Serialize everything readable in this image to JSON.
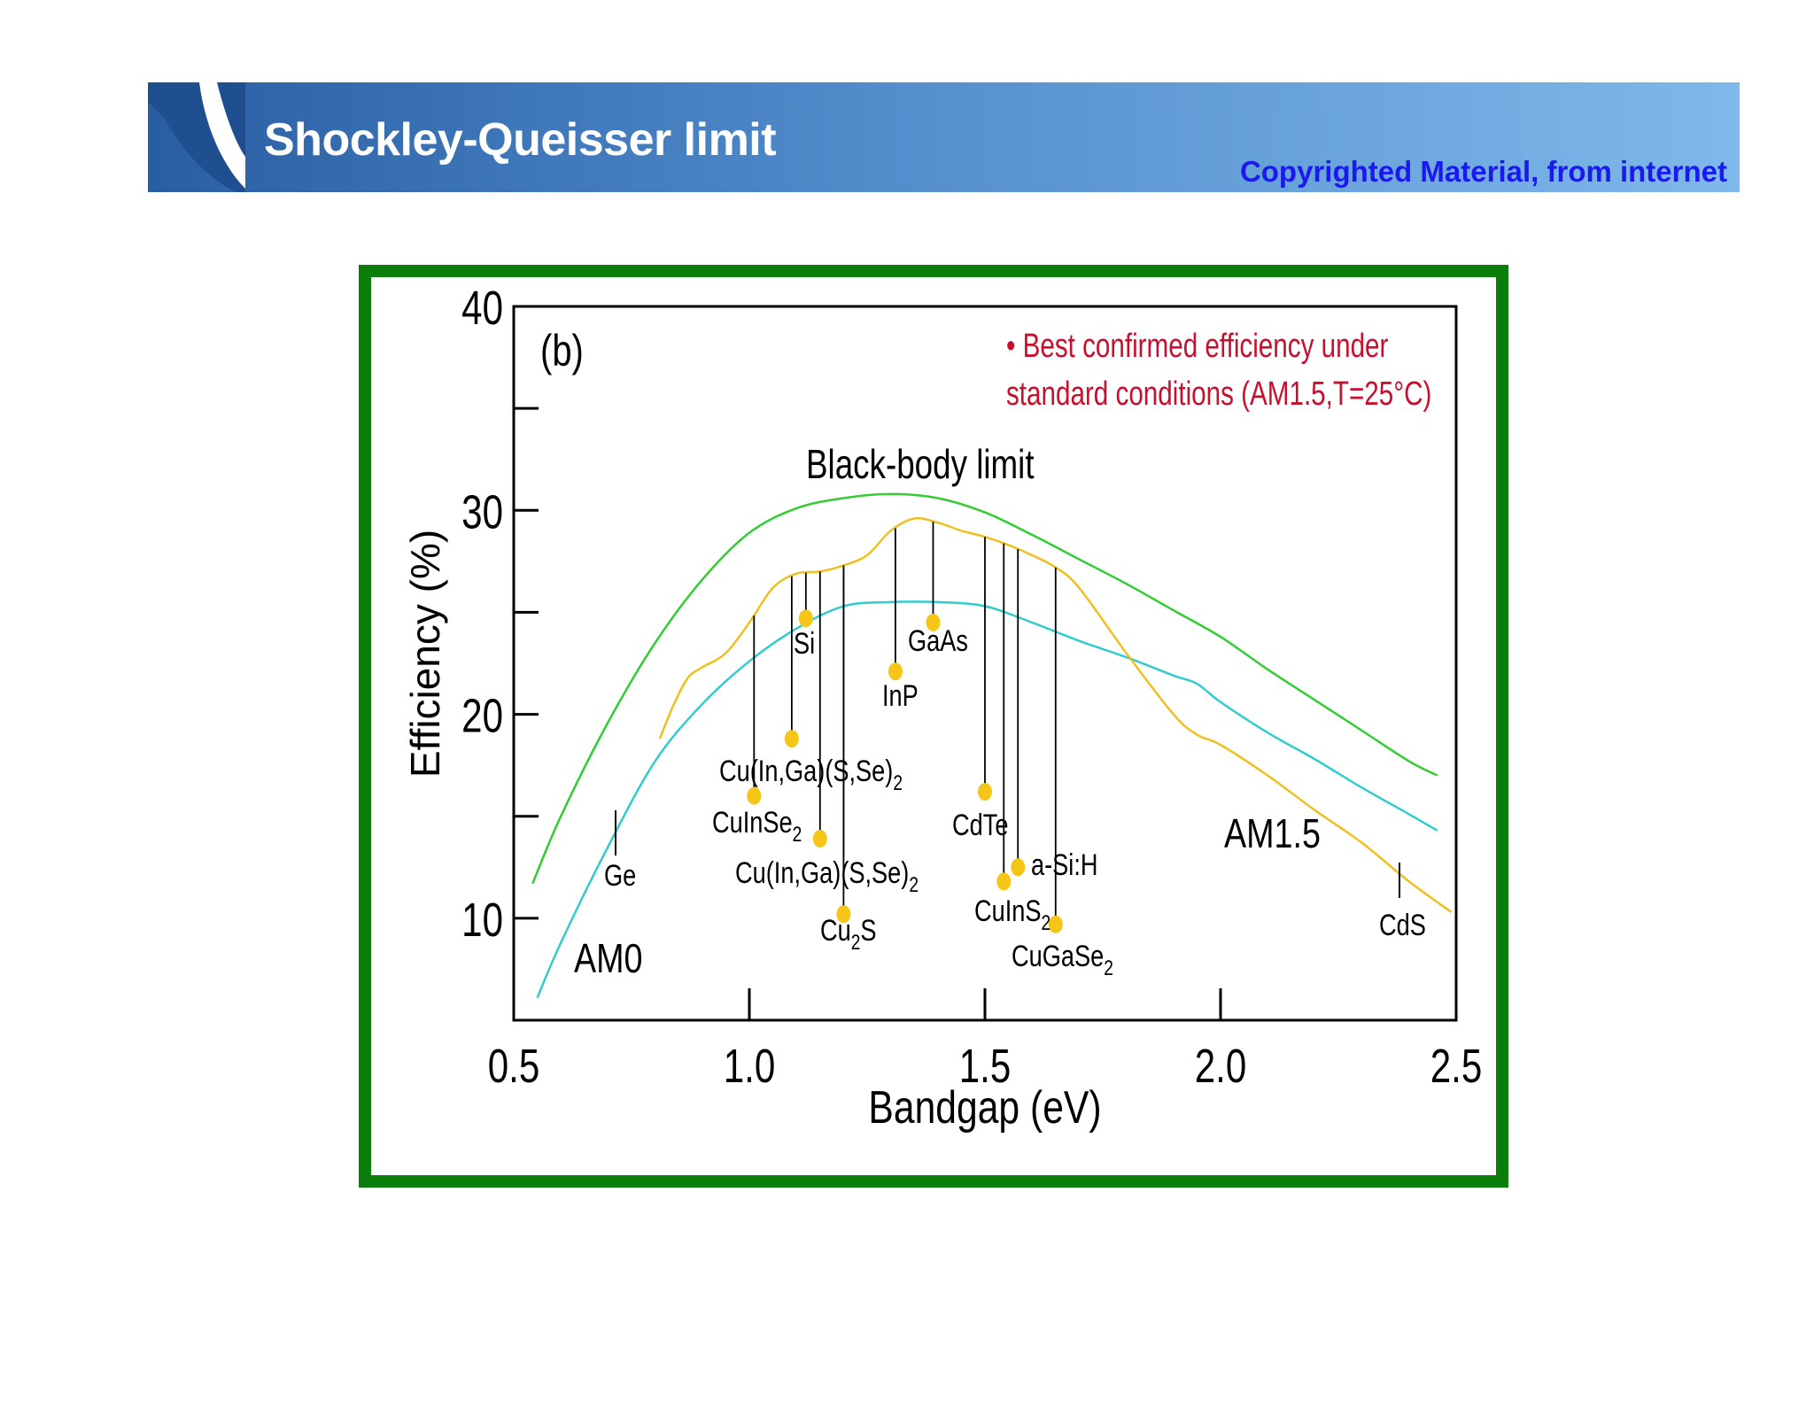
{
  "slide": {
    "title": "Shockley-Queisser limit",
    "copyright": "Copyrighted Material, from internet",
    "banner_color": "#3f78bb",
    "frame_color": "#0b7d0b"
  },
  "chart_data": {
    "type": "line",
    "panel_label": "(b)",
    "xlabel": "Bandgap (eV)",
    "ylabel": "Efficiency (%)",
    "xlim": [
      0.5,
      2.5
    ],
    "ylim": [
      5,
      40
    ],
    "xticks": [
      "0.5",
      "1.0",
      "1.5",
      "2.0",
      "2.5"
    ],
    "yticks": [
      "10",
      "20",
      "30",
      "40"
    ],
    "legend_note_line1": "• Best confirmed efficiency under",
    "legend_note_line2": "standard conditions (AM1.5,T=25°C)",
    "series": [
      {
        "label": "Black-body limit",
        "color": "#33cc33",
        "x": [
          0.54,
          0.6,
          0.7,
          0.8,
          0.9,
          1.0,
          1.1,
          1.2,
          1.3,
          1.4,
          1.5,
          1.6,
          1.7,
          1.8,
          1.9,
          2.0,
          2.1,
          2.2,
          2.3,
          2.4,
          2.46
        ],
        "y": [
          11.7,
          15.0,
          19.6,
          23.5,
          26.6,
          28.9,
          30.1,
          30.6,
          30.8,
          30.6,
          29.9,
          28.8,
          27.6,
          26.4,
          25.1,
          23.8,
          22.2,
          20.7,
          19.2,
          17.7,
          17.0
        ]
      },
      {
        "label": "AM0",
        "color": "#33cccc",
        "x": [
          0.55,
          0.6,
          0.7,
          0.8,
          0.9,
          1.0,
          1.1,
          1.2,
          1.3,
          1.4,
          1.5,
          1.6,
          1.7,
          1.8,
          1.9,
          1.95,
          2.0,
          2.1,
          2.2,
          2.3,
          2.4,
          2.46
        ],
        "y": [
          6.1,
          8.8,
          13.5,
          17.7,
          20.5,
          22.6,
          24.2,
          25.3,
          25.5,
          25.5,
          25.3,
          24.5,
          23.6,
          22.8,
          21.9,
          21.5,
          20.6,
          19.1,
          17.8,
          16.4,
          15.1,
          14.3
        ]
      },
      {
        "label": "AM1.5",
        "color": "#f0c020",
        "x": [
          0.81,
          0.84,
          0.87,
          0.9,
          0.95,
          1.0,
          1.05,
          1.1,
          1.15,
          1.2,
          1.25,
          1.3,
          1.35,
          1.4,
          1.45,
          1.5,
          1.55,
          1.6,
          1.65,
          1.7,
          1.8,
          1.9,
          1.95,
          2.0,
          2.1,
          2.2,
          2.3,
          2.4,
          2.49
        ],
        "y": [
          18.8,
          20.5,
          21.8,
          22.3,
          23.0,
          24.5,
          26.2,
          26.9,
          27.0,
          27.3,
          27.8,
          29.0,
          29.6,
          29.4,
          29.0,
          28.7,
          28.3,
          27.8,
          27.2,
          26.2,
          23.0,
          20.0,
          19.0,
          18.5,
          17.0,
          15.3,
          13.7,
          11.8,
          10.3
        ]
      }
    ],
    "curve_labels": {
      "blackbody": "Black-body limit",
      "am0": "AM0",
      "am15": "AM1.5"
    },
    "materials": [
      {
        "name": "Si",
        "x": 1.12,
        "y": 24.7
      },
      {
        "name": "GaAs",
        "x": 1.39,
        "y": 24.5
      },
      {
        "name": "InP",
        "x": 1.31,
        "y": 22.1
      },
      {
        "name": "Cu(In,Ga)(S,Se)2",
        "x": 1.09,
        "y": 18.8
      },
      {
        "name": "CuInSe2",
        "x": 1.01,
        "y": 16.0
      },
      {
        "name": "Cu(In,Ga)(S,Se)2",
        "x": 1.15,
        "y": 13.9
      },
      {
        "name": "Cu2S",
        "x": 1.2,
        "y": 10.2
      },
      {
        "name": "CdTe",
        "x": 1.5,
        "y": 16.2
      },
      {
        "name": "CuInS2",
        "x": 1.54,
        "y": 11.8
      },
      {
        "name": "a-Si:H",
        "x": 1.57,
        "y": 12.5
      },
      {
        "name": "CuGaSe2",
        "x": 1.65,
        "y": 9.7
      }
    ],
    "material_label_text": {
      "si": "Si",
      "gaas": "GaAs",
      "inp": "InP",
      "cigs_top": "Cu(In,Ga)(S,Se)",
      "cuinse": "CuInSe",
      "cigs_bottom": "Cu(In,Ga)(S,Se)",
      "cu2s_a": "Cu",
      "cu2s_b": "S",
      "cdte": "CdTe",
      "cuins": "CuInS",
      "asih": "a-Si:H",
      "cugase": "CuGaSe",
      "ge": "Ge",
      "cds": "CdS",
      "sub2": "2"
    },
    "marker_color": "#f5c518"
  }
}
